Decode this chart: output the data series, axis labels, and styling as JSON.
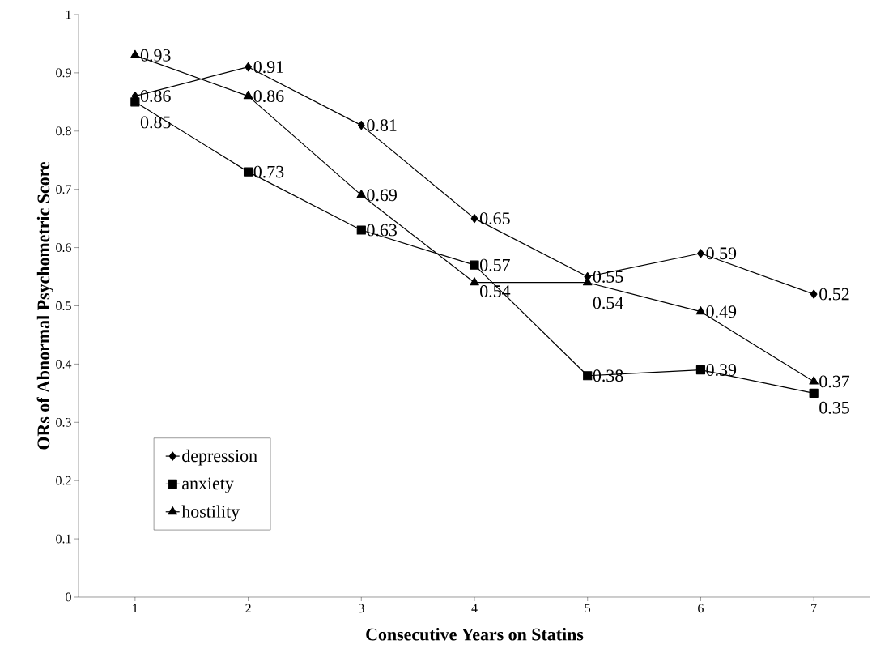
{
  "chart_data": {
    "type": "line",
    "xlabel": "Consecutive Years on Statins",
    "ylabel": "ORs of Abnormal Psychometric Score",
    "categories": [
      "1",
      "2",
      "3",
      "4",
      "5",
      "6",
      "7"
    ],
    "series": [
      {
        "name": "depression",
        "color": "#000000",
        "marker": "diamond",
        "values": [
          0.86,
          0.91,
          0.81,
          0.65,
          0.55,
          0.59,
          0.52
        ]
      },
      {
        "name": "anxiety",
        "color": "#000000",
        "marker": "square",
        "values": [
          0.85,
          0.73,
          0.63,
          0.57,
          0.38,
          0.39,
          0.35
        ]
      },
      {
        "name": "hostility",
        "color": "#000000",
        "marker": "triangle",
        "values": [
          0.93,
          0.86,
          0.69,
          0.54,
          0.54,
          0.49,
          0.37
        ]
      }
    ],
    "ylim": [
      0,
      1
    ],
    "yticks": [
      0,
      0.1,
      0.2,
      0.3,
      0.4,
      0.5,
      0.6,
      0.7,
      0.8,
      0.9,
      1
    ],
    "data_labels": true,
    "legend": "left",
    "grid": false,
    "line_style": "solid"
  }
}
